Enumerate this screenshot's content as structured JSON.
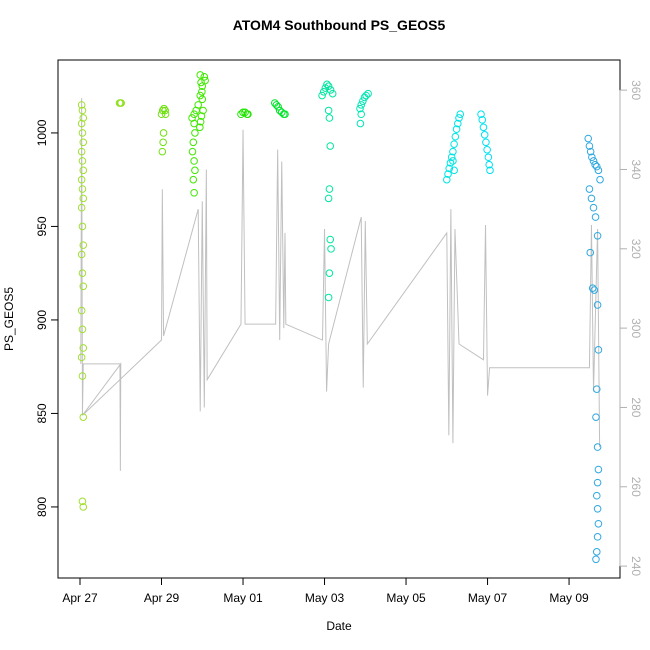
{
  "chart_data": {
    "type": "scatter",
    "title": "ATOM4 Southbound PS_GEOS5",
    "x_label": "Date",
    "y_label": "PS_GEOS5",
    "xlim": [
      -0.54,
      13.25
    ],
    "xticks": [
      {
        "value": 0,
        "label": "Apr 27"
      },
      {
        "value": 2,
        "label": "Apr 29"
      },
      {
        "value": 4,
        "label": "May 01"
      },
      {
        "value": 6,
        "label": "May 03"
      },
      {
        "value": 8,
        "label": "May 05"
      },
      {
        "value": 10,
        "label": "May 07"
      },
      {
        "value": 12,
        "label": "May 09"
      }
    ],
    "ylim": [
      762,
      1039
    ],
    "yticks": [
      800,
      850,
      900,
      950,
      1000
    ],
    "y2lim": [
      237,
      367.6
    ],
    "y2ticks": [
      240,
      260,
      280,
      300,
      320,
      340,
      360
    ],
    "series": [
      {
        "color": "#a0e030",
        "x": [
          0.04,
          0.06,
          0.08,
          0.04,
          0.06,
          0.08,
          0.04,
          0.06,
          0.08,
          0.04,
          0.06,
          0.08,
          0.04,
          0.06,
          0.08,
          0.04,
          0.06,
          0.08,
          0.04,
          0.06,
          0.08,
          0.04,
          0.06,
          0.08,
          0.06,
          0.08
        ],
        "values": [
          1015,
          1012,
          1008,
          1005,
          1000,
          995,
          990,
          985,
          980,
          975,
          970,
          965,
          960,
          950,
          940,
          935,
          925,
          918,
          905,
          895,
          885,
          880,
          870,
          848,
          803,
          800
        ]
      },
      {
        "color": "#90e020",
        "x": [
          0.97,
          0.99,
          1.01
        ],
        "values": [
          1016,
          1016,
          1016
        ]
      },
      {
        "color": "#70e010",
        "x": [
          2.0,
          2.03,
          2.06,
          2.09,
          2.1,
          2.05,
          2.04,
          2.02
        ],
        "values": [
          1010,
          1012,
          1013,
          1012,
          1010,
          1000,
          995,
          990
        ]
      },
      {
        "color": "#40e800",
        "x": [
          2.75,
          2.8,
          2.85,
          2.9,
          2.95,
          3.0,
          3.05,
          3.07,
          2.95,
          2.97,
          2.99,
          3.0,
          3.02,
          2.98,
          2.96,
          2.94,
          2.8,
          2.82,
          2.78,
          2.76,
          2.8,
          2.82,
          2.78,
          2.8
        ],
        "values": [
          1008,
          1010,
          1012,
          1015,
          1020,
          1025,
          1030,
          1028,
          1031,
          1027,
          1022,
          1018,
          1012,
          1009,
          1006,
          1003,
          1005,
          1000,
          995,
          990,
          985,
          980,
          975,
          968
        ]
      },
      {
        "color": "#20e400",
        "x": [
          3.95,
          4.0,
          4.05,
          4.1,
          4.12
        ],
        "values": [
          1010,
          1011,
          1011,
          1010,
          1010
        ]
      },
      {
        "color": "#00e428",
        "x": [
          4.78,
          4.82,
          4.86,
          4.9,
          4.95,
          5.0,
          5.03
        ],
        "values": [
          1016,
          1015,
          1014,
          1012,
          1011,
          1010,
          1010
        ]
      },
      {
        "color": "#00e6a0",
        "x": [
          5.94,
          5.98,
          6.02,
          6.06,
          6.1,
          6.15,
          6.2,
          6.1,
          6.12,
          6.14,
          6.12,
          6.1,
          6.14,
          6.16,
          6.12,
          6.1
        ],
        "values": [
          1020,
          1022,
          1024,
          1026,
          1025,
          1023,
          1021,
          1012,
          1008,
          993,
          970,
          965,
          943,
          938,
          925,
          912
        ]
      },
      {
        "color": "#00e6b4",
        "x": [
          6.87,
          6.9,
          6.94,
          6.98,
          7.02,
          7.07,
          6.9,
          6.88
        ],
        "values": [
          1013,
          1015,
          1017,
          1019,
          1020,
          1021,
          1010,
          1005
        ]
      },
      {
        "color": "#00e4e4",
        "x": [
          9.0,
          9.03,
          9.06,
          9.09,
          9.12,
          9.15,
          9.18,
          9.21,
          9.24,
          9.27,
          9.3,
          9.33,
          9.15,
          9.18
        ],
        "values": [
          975,
          978,
          981,
          984,
          987,
          990,
          994,
          998,
          1002,
          1005,
          1008,
          1010,
          985,
          980
        ]
      },
      {
        "color": "#00e0f0",
        "x": [
          9.84,
          9.87,
          9.9,
          9.93,
          9.96,
          9.99,
          10.02,
          10.04,
          10.06
        ],
        "values": [
          1010,
          1007,
          1003,
          999,
          995,
          991,
          987,
          983,
          980
        ]
      },
      {
        "color": "#30a8e0",
        "x": [
          12.47,
          12.5,
          12.53,
          12.56,
          12.6,
          12.64,
          12.68,
          12.72,
          12.76,
          12.5,
          12.55,
          12.6,
          12.65,
          12.7,
          12.52,
          12.58,
          12.62,
          12.7,
          12.72,
          12.68,
          12.66,
          12.7,
          12.72,
          12.7,
          12.68,
          12.7,
          12.72,
          12.7,
          12.68,
          12.66
        ],
        "values": [
          997,
          993,
          990,
          987,
          985,
          983,
          982,
          980,
          975,
          970,
          965,
          960,
          955,
          945,
          936,
          917,
          916,
          908,
          884,
          863,
          848,
          832,
          820,
          813,
          806,
          799,
          791,
          784,
          776,
          772
        ]
      },
      {
        "type": "line",
        "axis": "y2",
        "color": "#c0c0c0",
        "x": [
          0.02,
          0.04,
          0.06,
          0.08,
          0.98,
          0.99,
          1.0,
          0.06,
          2.0,
          2.02,
          2.05,
          2.9,
          2.95,
          3.0,
          3.05,
          3.1,
          3.12,
          3.95,
          4.0,
          4.05,
          4.8,
          4.85,
          4.9,
          4.95,
          5.0,
          5.03,
          5.05,
          5.95,
          6.0,
          6.05,
          6.1,
          6.9,
          6.95,
          7.0,
          7.05,
          9.0,
          9.05,
          9.1,
          9.15,
          9.2,
          9.3,
          9.9,
          9.95,
          10.0,
          10.05,
          12.5,
          12.55,
          12.6,
          12.7,
          12.75
        ],
        "values": [
          291,
          358,
          278,
          291,
          291,
          264,
          291,
          278,
          297,
          335,
          298,
          330,
          279,
          332,
          280,
          340,
          287,
          301,
          350,
          301,
          301,
          345,
          297,
          342,
          300,
          324,
          301,
          297,
          325,
          284,
          296,
          328,
          285,
          327,
          296,
          324,
          273,
          330,
          271,
          325,
          296,
          292,
          326,
          283,
          290,
          290,
          326,
          284,
          325,
          270
        ]
      }
    ]
  }
}
